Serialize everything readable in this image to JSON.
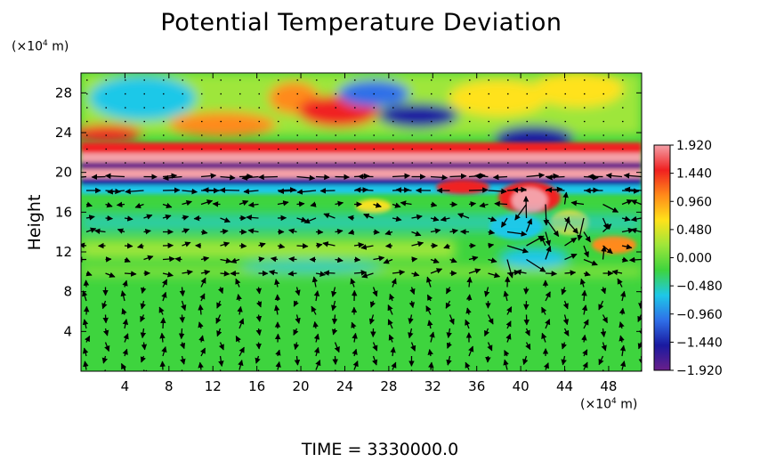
{
  "chart_data": {
    "type": "heatmap",
    "title": "Potential Temperature Deviation",
    "ylabel": "Height",
    "x_unit_label": "(×10",
    "x_unit_exp": "4",
    "x_unit_tail": " m)",
    "y_unit_label": "(×10",
    "y_unit_exp": "4",
    "y_unit_tail": " m)",
    "xlim": [
      0,
      51
    ],
    "ylim": [
      0,
      30
    ],
    "x_ticks": [
      4,
      8,
      12,
      16,
      20,
      24,
      28,
      32,
      36,
      40,
      44,
      48
    ],
    "y_ticks": [
      4,
      8,
      12,
      16,
      20,
      24,
      28
    ],
    "colorbar": {
      "min": -1.92,
      "max": 1.92,
      "tick_labels": [
        "1.920",
        "1.440",
        "0.960",
        "0.480",
        "0.000",
        "-0.480",
        "-0.960",
        "-1.440",
        "-1.920"
      ],
      "colors": [
        "#6a1f8a",
        "#1a1aa0",
        "#2f6fe8",
        "#1ec8e8",
        "#3ed43e",
        "#9ee63a",
        "#ffe21a",
        "#ff8a1a",
        "#f02020",
        "#f4a0a8"
      ]
    },
    "overlay": "wind vectors",
    "time_label": "TIME  =  3330000.0"
  },
  "colors": {
    "background_field": "#3ed43e",
    "stratosphere_field": "#9ee63a"
  }
}
